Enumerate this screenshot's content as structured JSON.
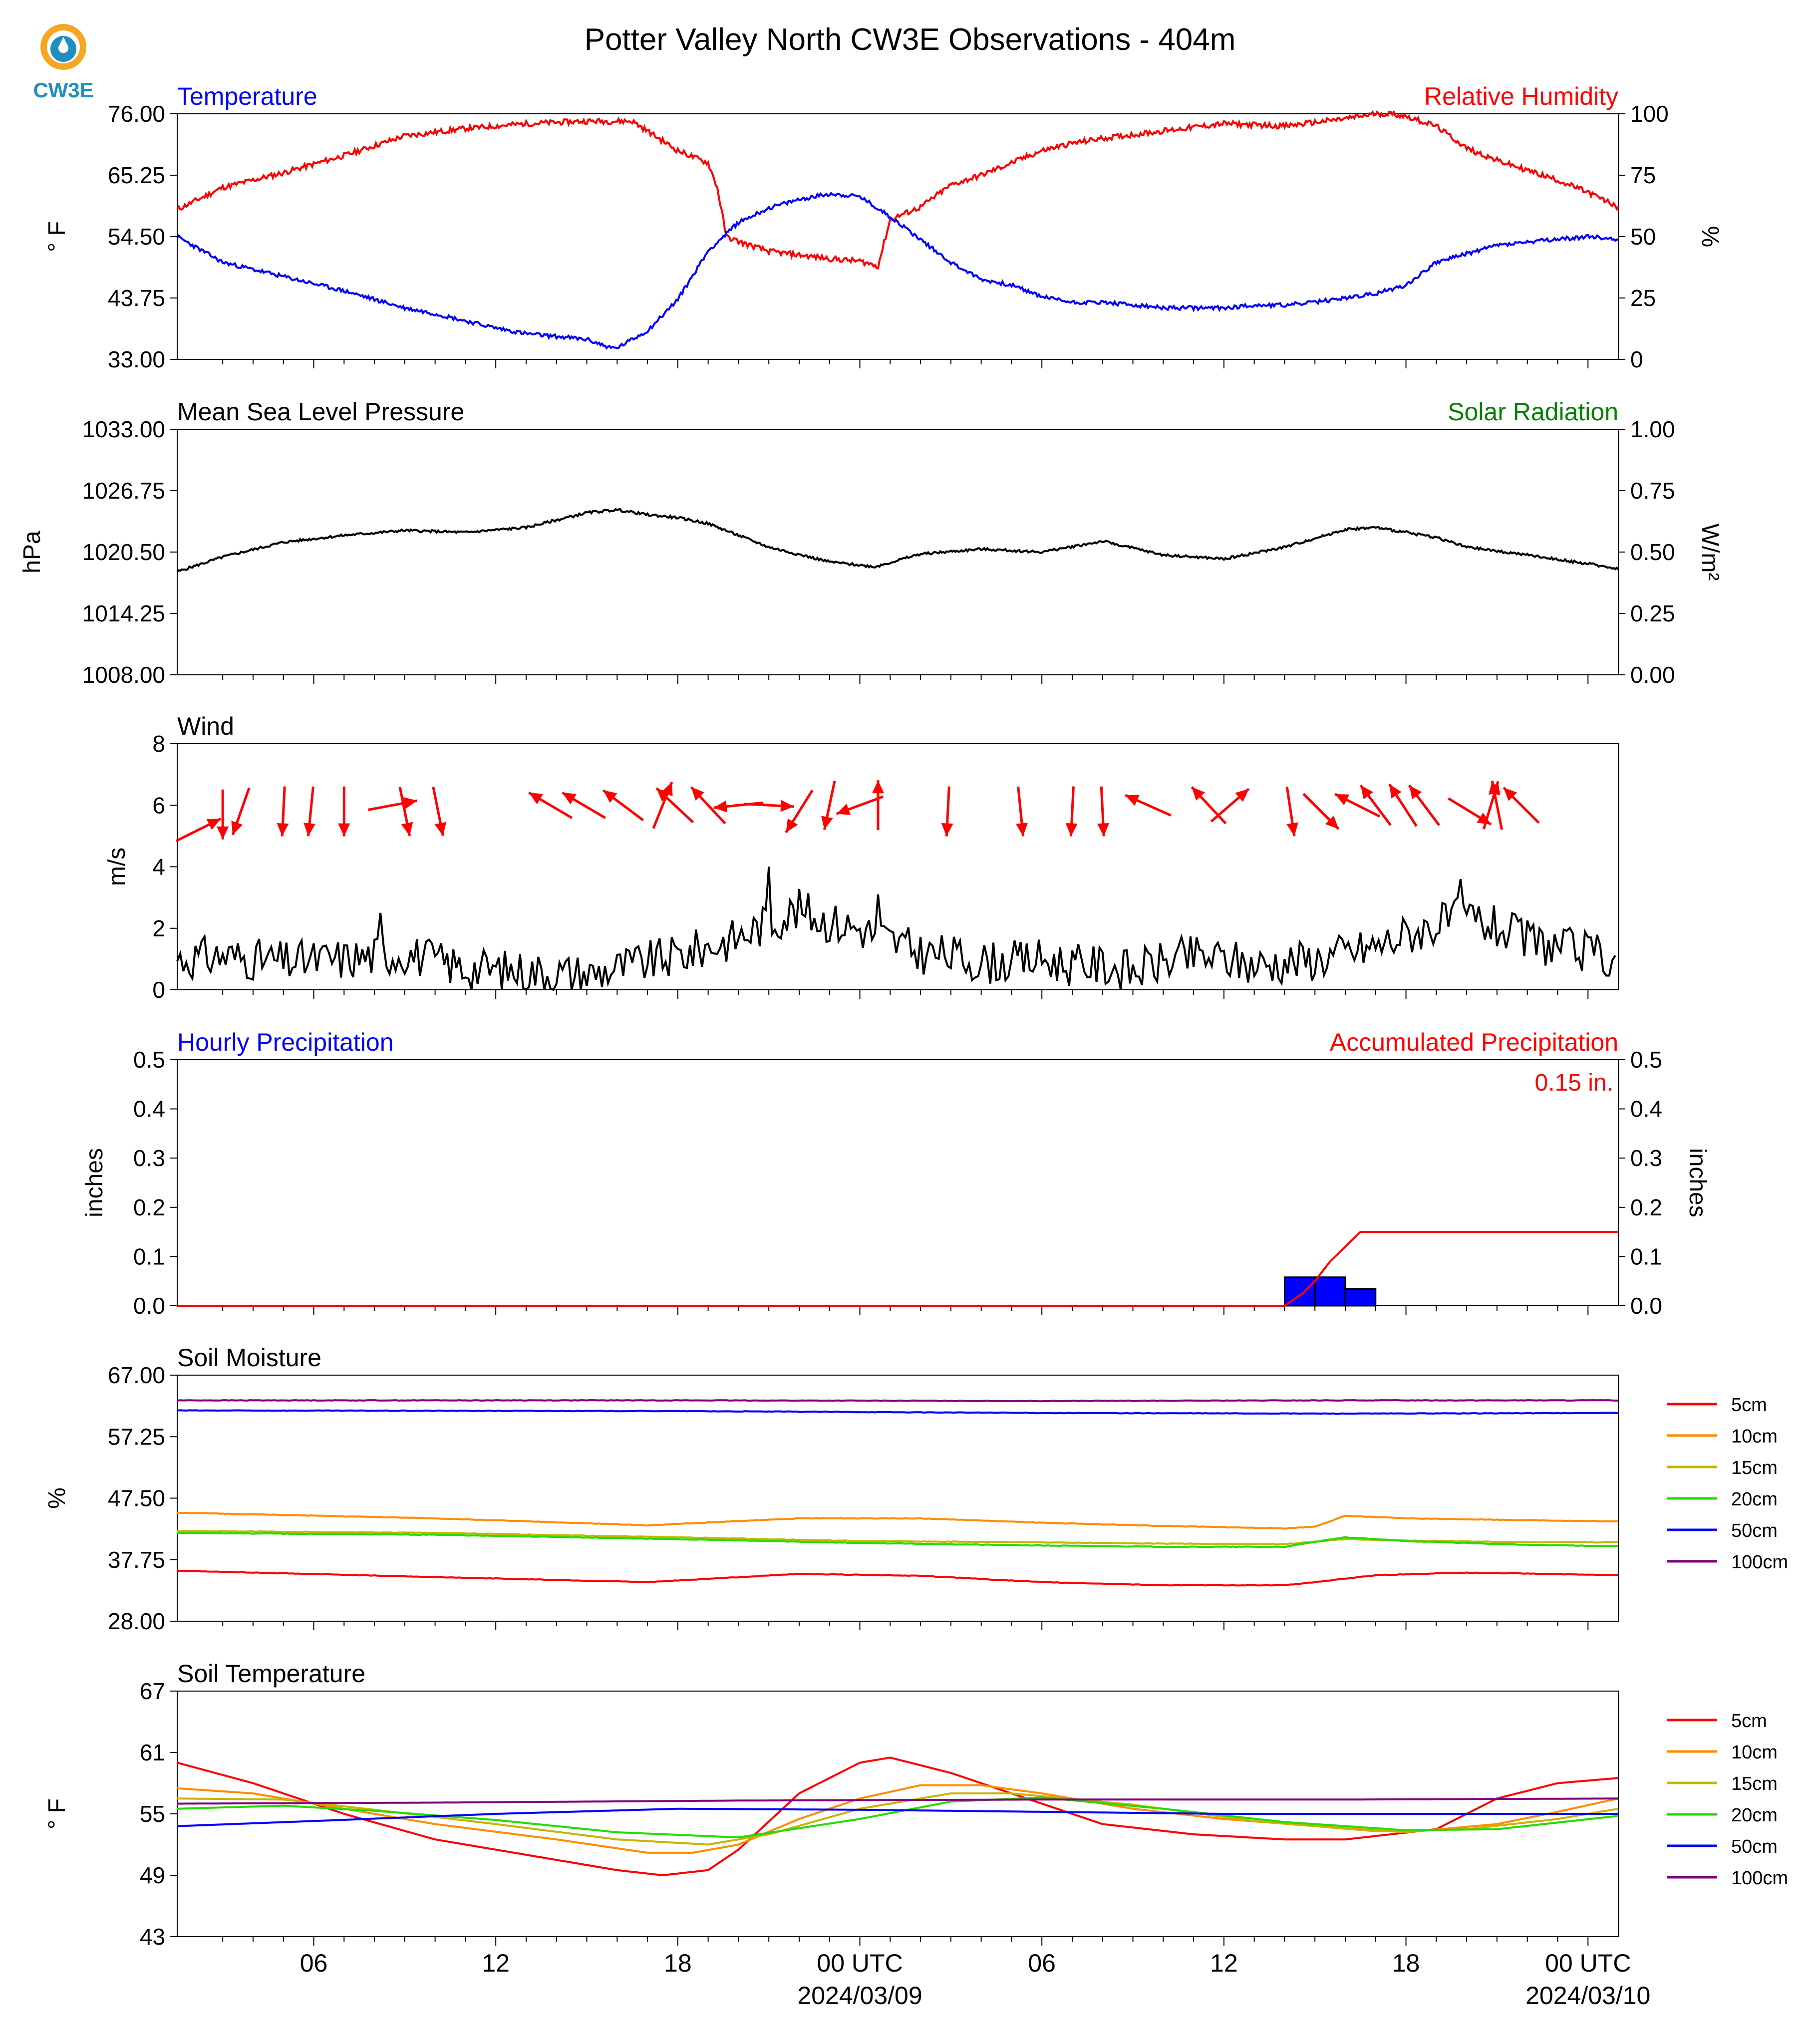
{
  "title": "Potter Valley North CW3E Observations - 404m",
  "logo": {
    "text": "CW3E",
    "colors": {
      "ring": "#F5A623",
      "body": "#1E8FBF",
      "text": "#1E8FBF"
    }
  },
  "x_axis": {
    "tick_labels": [
      "06",
      "12",
      "18",
      "00 UTC",
      "06",
      "12",
      "18",
      "00 UTC"
    ],
    "date_labels": [
      "2024/03/09",
      "2024/03/10"
    ]
  },
  "panels": [
    {
      "id": "temperature",
      "title_left": "Temperature",
      "title_left_color": "#0000ff",
      "title_right": "Relative Humidity",
      "title_right_color": "#ff0000",
      "ylabel_left": "° F",
      "ylabel_right": "%",
      "left_ticks": [
        "76.00",
        "65.25",
        "54.50",
        "43.75",
        "33.00"
      ],
      "right_ticks": [
        "100",
        "75",
        "50",
        "25",
        "0"
      ]
    },
    {
      "id": "pressure",
      "title_left": "Mean Sea Level Pressure",
      "title_left_color": "#000000",
      "title_right": "Solar Radiation",
      "title_right_color": "#008000",
      "ylabel_left": "hPa",
      "ylabel_right": "W/m²",
      "left_ticks": [
        "1033.00",
        "1026.75",
        "1020.50",
        "1014.25",
        "1008.00"
      ],
      "right_ticks": [
        "1.00",
        "0.75",
        "0.50",
        "0.25",
        "0.00"
      ]
    },
    {
      "id": "wind",
      "title_left": "Wind",
      "title_left_color": "#000000",
      "ylabel_left": "m/s",
      "left_ticks": [
        "8",
        "6",
        "4",
        "2",
        "0"
      ]
    },
    {
      "id": "precip",
      "title_left": "Hourly Precipitation",
      "title_left_color": "#0000ff",
      "title_right": "Accumulated Precipitation",
      "title_right_color": "#ff0000",
      "ylabel_left": "inches",
      "ylabel_right": "inches",
      "left_ticks": [
        "0.5",
        "0.4",
        "0.3",
        "0.2",
        "0.1",
        "0.0"
      ],
      "right_ticks": [
        "0.5",
        "0.4",
        "0.3",
        "0.2",
        "0.1",
        "0.0"
      ],
      "total_label": "0.15 in."
    },
    {
      "id": "soil_moisture",
      "title_left": "Soil Moisture",
      "title_left_color": "#000000",
      "ylabel_left": "%",
      "left_ticks": [
        "67.00",
        "57.25",
        "47.50",
        "37.75",
        "28.00"
      ]
    },
    {
      "id": "soil_temp",
      "title_left": "Soil Temperature",
      "title_left_color": "#000000",
      "ylabel_left": "° F",
      "left_ticks": [
        "67",
        "61",
        "55",
        "49",
        "43"
      ]
    }
  ],
  "legend": [
    {
      "label": "5cm",
      "color": "#ff0000"
    },
    {
      "label": "10cm",
      "color": "#ff8c00"
    },
    {
      "label": "15cm",
      "color": "#c8b400"
    },
    {
      "label": "20cm",
      "color": "#22dd00"
    },
    {
      "label": "50cm",
      "color": "#0000ff"
    },
    {
      "label": "100cm",
      "color": "#800080"
    }
  ],
  "chart_data": {
    "type": "line",
    "title": "Potter Valley North CW3E Observations - 404m",
    "x_hours_range": [
      1.5,
      49.0
    ],
    "x_unit": "hours from 2024/03/08 00 UTC",
    "temperature": {
      "ylim": [
        33,
        76
      ],
      "color": "#0000ff",
      "x": [
        1.5,
        3,
        5,
        7,
        8,
        9,
        10,
        12,
        13,
        14,
        15,
        15.8,
        16,
        17,
        18,
        19,
        20,
        21,
        22,
        23,
        24,
        25,
        26,
        27,
        28,
        29,
        30,
        31,
        32,
        34,
        35,
        36,
        37,
        38,
        39,
        41,
        42,
        43,
        44,
        45,
        46,
        47,
        48,
        49
      ],
      "y": [
        54.5,
        50,
        47.5,
        45,
        43.5,
        42,
        41,
        38.5,
        37.5,
        37,
        36.5,
        35,
        35,
        38,
        43.5,
        52,
        57,
        59.5,
        61,
        62,
        61.5,
        58,
        54,
        50,
        47,
        46,
        44,
        43,
        43,
        42,
        42,
        42,
        42.5,
        42.5,
        43,
        44.5,
        46,
        50,
        51.5,
        53,
        53.5,
        54,
        54.5,
        54
      ]
    },
    "relative_humidity": {
      "ylim": [
        0,
        100
      ],
      "color": "#ff0000",
      "x": [
        1.5,
        3,
        5,
        7,
        9,
        11,
        13,
        15,
        16.5,
        17,
        18,
        19,
        19.3,
        19.6,
        20,
        21,
        23,
        24,
        24.6,
        25,
        26,
        27,
        28,
        29,
        30,
        31,
        32,
        34,
        36,
        38,
        40,
        41,
        41.5,
        42,
        43,
        44,
        45,
        46,
        47,
        48,
        49
      ],
      "y": [
        61,
        70,
        76,
        83,
        91,
        94,
        96,
        97,
        97,
        93,
        85,
        80,
        70,
        50,
        48,
        44,
        41,
        40,
        38,
        57,
        62,
        71,
        75,
        80,
        85,
        88,
        90,
        93,
        96,
        95,
        98,
        100,
        100,
        99,
        95,
        86,
        81,
        77,
        73,
        68,
        62
      ]
    },
    "pressure": {
      "ylim": [
        1008,
        1033
      ],
      "color": "#000000",
      "x": [
        1.5,
        3,
        5,
        7,
        9,
        11,
        13,
        15,
        16,
        17,
        18,
        19,
        21,
        23,
        24.5,
        26,
        28,
        30,
        32,
        34,
        36,
        38,
        40,
        41,
        42,
        43,
        44,
        46,
        48,
        49
      ],
      "y": [
        1018.5,
        1020,
        1021.5,
        1022.2,
        1022.7,
        1022.5,
        1023,
        1024.5,
        1024.8,
        1024.3,
        1024,
        1023.4,
        1021,
        1019.5,
        1019,
        1020.3,
        1020.8,
        1020.5,
        1021.6,
        1020.2,
        1019.8,
        1021,
        1022.8,
        1023,
        1022.5,
        1022,
        1021,
        1020.2,
        1019.3,
        1018.8
      ]
    },
    "solar_radiation": {
      "ylim": [
        0,
        1
      ],
      "values": []
    },
    "wind_speed": {
      "ylim": [
        0,
        8
      ],
      "color": "#000000",
      "x": [
        1.5,
        3,
        5,
        7,
        9,
        11,
        13,
        15,
        16,
        17,
        18,
        19,
        20,
        21,
        22,
        23,
        24,
        25,
        26,
        27,
        28,
        29,
        30,
        31,
        32,
        33,
        34,
        35,
        36,
        37,
        38,
        39,
        40,
        41,
        42,
        43,
        44,
        45,
        46,
        47,
        48,
        49
      ],
      "y": [
        1.0,
        1.1,
        0.9,
        1.0,
        1.2,
        0.7,
        0.6,
        0.5,
        0.7,
        0.9,
        1.1,
        1.4,
        1.7,
        2.2,
        2.6,
        2.2,
        2.0,
        1.6,
        1.2,
        1.1,
        0.9,
        0.9,
        1.0,
        0.8,
        0.8,
        0.6,
        0.9,
        1.1,
        1.0,
        0.8,
        0.9,
        1.0,
        1.2,
        1.4,
        1.8,
        2.1,
        2.4,
        2.0,
        1.6,
        1.4,
        1.2,
        1.0
      ],
      "peaks": [
        {
          "x": 8.2,
          "y": 2.5
        },
        {
          "x": 21.0,
          "y": 4.0
        },
        {
          "x": 24.6,
          "y": 3.1
        },
        {
          "x": 43.8,
          "y": 3.6
        }
      ]
    },
    "wind_direction_arrows": {
      "color": "#ff0000",
      "arrows": [
        {
          "x": 2.2,
          "y": 5.2,
          "u": 0.5,
          "v": 0.25
        },
        {
          "x": 3.0,
          "y": 5.7,
          "u": 0.0,
          "v": -1.2
        },
        {
          "x": 3.6,
          "y": 5.8,
          "u": -0.35,
          "v": -1.0
        },
        {
          "x": 5.0,
          "y": 5.8,
          "u": -0.05,
          "v": -1.0
        },
        {
          "x": 5.9,
          "y": 5.8,
          "u": -0.1,
          "v": -1.0
        },
        {
          "x": 7.0,
          "y": 5.8,
          "u": 0.0,
          "v": -1.0
        },
        {
          "x": 8.6,
          "y": 6.0,
          "u": 0.8,
          "v": 0.15
        },
        {
          "x": 9.0,
          "y": 5.8,
          "u": 0.2,
          "v": -1.0
        },
        {
          "x": 10.1,
          "y": 5.8,
          "u": 0.2,
          "v": -1.0
        },
        {
          "x": 13.8,
          "y": 6.0,
          "u": -0.85,
          "v": 0.5
        },
        {
          "x": 14.9,
          "y": 6.0,
          "u": -0.85,
          "v": 0.5
        },
        {
          "x": 16.2,
          "y": 6.0,
          "u": -0.8,
          "v": 0.6
        },
        {
          "x": 17.5,
          "y": 6.0,
          "u": 0.4,
          "v": 1.0
        },
        {
          "x": 17.9,
          "y": 6.0,
          "u": -0.75,
          "v": 0.7
        },
        {
          "x": 19.0,
          "y": 6.0,
          "u": -0.7,
          "v": 0.75
        },
        {
          "x": 20.0,
          "y": 6.0,
          "u": -1.0,
          "v": -0.1
        },
        {
          "x": 21.0,
          "y": 6.0,
          "u": 0.95,
          "v": -0.05
        },
        {
          "x": 22.0,
          "y": 5.8,
          "u": -0.5,
          "v": -0.8
        },
        {
          "x": 23.0,
          "y": 6.0,
          "u": -0.2,
          "v": -0.95
        },
        {
          "x": 24.0,
          "y": 6.0,
          "u": -0.95,
          "v": -0.35
        },
        {
          "x": 24.6,
          "y": 6.0,
          "u": 0.0,
          "v": 1.0
        },
        {
          "x": 26.9,
          "y": 5.8,
          "u": -0.05,
          "v": -1.0
        },
        {
          "x": 29.3,
          "y": 5.8,
          "u": 0.1,
          "v": -1.0
        },
        {
          "x": 31.0,
          "y": 5.8,
          "u": -0.05,
          "v": -1.0
        },
        {
          "x": 32.0,
          "y": 5.8,
          "u": 0.05,
          "v": -1.0
        },
        {
          "x": 33.5,
          "y": 6.0,
          "u": -0.9,
          "v": 0.4
        },
        {
          "x": 35.5,
          "y": 6.0,
          "u": -0.7,
          "v": 0.75
        },
        {
          "x": 36.2,
          "y": 6.0,
          "u": 0.75,
          "v": 0.65
        },
        {
          "x": 38.2,
          "y": 5.8,
          "u": 0.15,
          "v": -1.0
        },
        {
          "x": 39.2,
          "y": 5.8,
          "u": 0.7,
          "v": -0.7
        },
        {
          "x": 40.4,
          "y": 6.0,
          "u": -0.9,
          "v": 0.45
        },
        {
          "x": 41.0,
          "y": 6.0,
          "u": -0.6,
          "v": 0.8
        },
        {
          "x": 41.9,
          "y": 6.0,
          "u": -0.55,
          "v": 0.85
        },
        {
          "x": 42.6,
          "y": 6.0,
          "u": -0.6,
          "v": 0.8
        },
        {
          "x": 44.1,
          "y": 5.8,
          "u": 0.9,
          "v": -0.55
        },
        {
          "x": 44.8,
          "y": 6.0,
          "u": 0.3,
          "v": 1.0
        },
        {
          "x": 45.0,
          "y": 6.0,
          "u": -0.2,
          "v": 1.0
        },
        {
          "x": 45.8,
          "y": 6.0,
          "u": -0.7,
          "v": 0.7
        }
      ]
    },
    "hourly_precipitation": {
      "ylim": [
        0,
        0.5
      ],
      "color": "#0000ff",
      "bars": [
        {
          "x0": 38.0,
          "x1": 39.0,
          "y": 0.058
        },
        {
          "x0": 39.0,
          "x1": 40.0,
          "y": 0.058
        },
        {
          "x0": 40.0,
          "x1": 41.0,
          "y": 0.034
        }
      ]
    },
    "accumulated_precipitation": {
      "ylim": [
        0,
        0.5
      ],
      "color": "#ff0000",
      "total": 0.15,
      "x": [
        1.5,
        38.0,
        38.6,
        39.0,
        39.5,
        40.0,
        40.5,
        49.0
      ],
      "y": [
        0,
        0,
        0.025,
        0.05,
        0.09,
        0.12,
        0.15,
        0.15
      ]
    },
    "soil_moisture": {
      "ylim": [
        28,
        67
      ],
      "series": [
        {
          "name": "5cm",
          "color": "#ff0000",
          "x": [
            1.5,
            10,
            17,
            22,
            26,
            30,
            34,
            38,
            39,
            41,
            44,
            49
          ],
          "y": [
            36,
            35,
            34.2,
            35.5,
            35.2,
            34.2,
            33.7,
            33.7,
            34.2,
            35.3,
            35.7,
            35.3
          ]
        },
        {
          "name": "10cm",
          "color": "#ff8c00",
          "x": [
            1.5,
            10,
            17,
            22,
            26,
            30,
            34,
            38,
            39,
            40,
            42,
            49
          ],
          "y": [
            45.2,
            44.3,
            43.2,
            44.3,
            44.3,
            43.6,
            43.1,
            42.7,
            43.0,
            44.7,
            44.3,
            43.8
          ]
        },
        {
          "name": "15cm",
          "color": "#c8b400",
          "x": [
            1.5,
            10,
            18,
            24,
            30,
            34,
            38,
            40,
            42,
            46,
            49
          ],
          "y": [
            42.3,
            42.0,
            41.3,
            40.7,
            40.5,
            40.3,
            40.2,
            41.0,
            40.8,
            40.5,
            40.5
          ]
        },
        {
          "name": "20cm",
          "color": "#22dd00",
          "x": [
            1.5,
            10,
            18,
            24,
            30,
            34,
            38,
            40,
            42,
            46,
            49
          ],
          "y": [
            42.0,
            41.7,
            41.0,
            40.4,
            40.0,
            39.8,
            39.8,
            41.3,
            40.7,
            40.1,
            39.9
          ]
        },
        {
          "name": "50cm",
          "color": "#0000ff",
          "x": [
            1.5,
            18,
            30,
            40,
            49
          ],
          "y": [
            61.4,
            61.3,
            61.0,
            60.9,
            61.0
          ]
        },
        {
          "name": "100cm",
          "color": "#800080",
          "x": [
            1.5,
            18,
            30,
            40,
            49
          ],
          "y": [
            63.0,
            63.0,
            62.9,
            63.0,
            63.0
          ]
        }
      ]
    },
    "soil_temperature": {
      "ylim": [
        43,
        67
      ],
      "series": [
        {
          "name": "5cm",
          "color": "#ff0000",
          "x": [
            1.5,
            4,
            7,
            10,
            13,
            16,
            17.5,
            19,
            20,
            22,
            24,
            25,
            27,
            30,
            32,
            35,
            38,
            40,
            43,
            45,
            47,
            49
          ],
          "y": [
            60,
            58,
            55,
            52.5,
            51,
            49.5,
            49,
            49.5,
            51.5,
            57,
            60,
            60.5,
            59,
            56,
            54,
            53,
            52.5,
            52.5,
            53.5,
            56.5,
            58,
            58.5
          ]
        },
        {
          "name": "10cm",
          "color": "#ff8c00",
          "x": [
            1.5,
            4,
            7,
            10,
            14,
            17,
            18.5,
            20,
            22,
            24,
            26,
            28,
            30,
            33,
            36,
            39,
            42,
            45,
            47,
            49
          ],
          "y": [
            57.5,
            57,
            55.5,
            54,
            52.5,
            51.2,
            51.2,
            52,
            54.5,
            56.5,
            57.8,
            57.8,
            57,
            55.5,
            54.5,
            53.8,
            53.2,
            54,
            55.2,
            56.5
          ]
        },
        {
          "name": "15cm",
          "color": "#c8b400",
          "x": [
            1.5,
            5,
            8,
            12,
            16,
            19,
            21,
            24,
            27,
            29,
            33,
            37,
            41,
            44,
            47,
            49
          ],
          "y": [
            56.5,
            56.4,
            55.4,
            54,
            52.5,
            52,
            53,
            55.5,
            57,
            57,
            55.9,
            54.3,
            53.3,
            53.5,
            54.5,
            55.5
          ]
        },
        {
          "name": "20cm",
          "color": "#22dd00",
          "x": [
            1.5,
            5,
            8,
            12,
            16,
            20,
            24,
            27,
            30,
            34,
            38,
            42,
            45,
            49
          ],
          "y": [
            55.5,
            55.8,
            55.3,
            54.4,
            53.2,
            52.7,
            54.5,
            56.2,
            56.6,
            55.5,
            54.2,
            53.4,
            53.5,
            54.8
          ]
        },
        {
          "name": "50cm",
          "color": "#0000ff",
          "x": [
            1.5,
            6,
            12,
            18,
            24,
            30,
            36,
            42,
            49
          ],
          "y": [
            53.8,
            54.3,
            55,
            55.5,
            55.4,
            55.2,
            55.0,
            55,
            55
          ]
        },
        {
          "name": "100cm",
          "color": "#800080",
          "x": [
            1.5,
            10,
            20,
            30,
            40,
            49
          ],
          "y": [
            56.0,
            56.1,
            56.3,
            56.4,
            56.4,
            56.5
          ]
        }
      ]
    }
  }
}
